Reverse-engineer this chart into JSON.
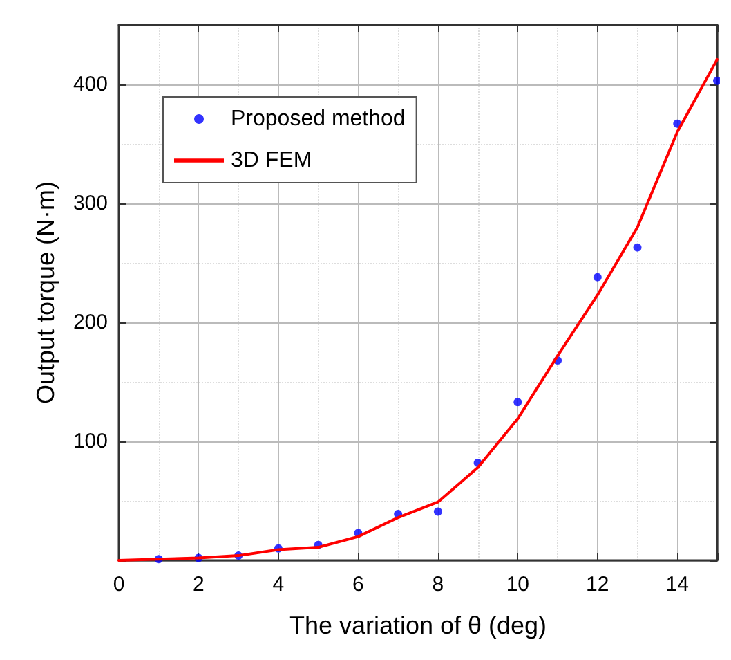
{
  "chart_data": {
    "type": "scatter",
    "xlabel": "The variation of θ (deg)",
    "ylabel": "Output torque (N·m)",
    "xlim": [
      0,
      15
    ],
    "ylim": [
      0,
      450
    ],
    "xticks": [
      0,
      2,
      4,
      6,
      8,
      10,
      12,
      14
    ],
    "yticks": [
      {
        "value": 0,
        "label": null
      },
      100,
      200,
      300,
      400
    ],
    "grid": true,
    "legend": "top left",
    "series": [
      {
        "name": "Proposed method",
        "marker": "circle",
        "color": "#0000ff",
        "x": [
          1,
          2,
          3,
          4,
          5,
          6,
          7,
          8,
          9,
          10,
          11,
          12,
          13,
          14,
          15
        ],
        "values": [
          1,
          2,
          4,
          10,
          13,
          23,
          39,
          41,
          82,
          133,
          168,
          238,
          263,
          367,
          403
        ]
      },
      {
        "name": "3D FEM",
        "type": "line",
        "marker": "none",
        "color": "#ff0000",
        "x": [
          0,
          1,
          2,
          3,
          4,
          5,
          6,
          7,
          8,
          9,
          10,
          11,
          12,
          13,
          14,
          15
        ],
        "values": [
          0,
          1,
          2,
          4,
          9,
          11,
          20,
          36,
          49,
          78,
          119,
          172,
          223,
          280,
          360,
          421
        ]
      }
    ]
  }
}
